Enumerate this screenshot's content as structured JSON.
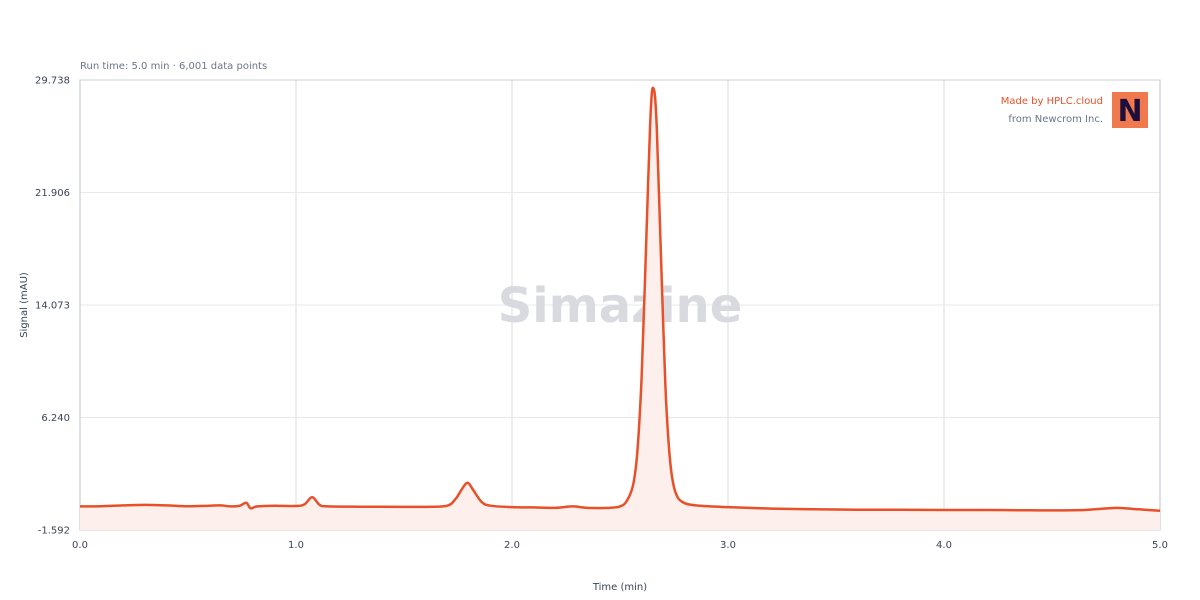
{
  "subtitle": "Run time: 5.0 min · 6,001 data points",
  "watermark": "Simazine",
  "branding": {
    "line1": "Made by HPLC.cloud",
    "line2": "from Newcrom Inc.",
    "logo_letter": "N",
    "accent_color": "#f07a4e",
    "text_color": "#e8502a"
  },
  "colors": {
    "trace": "#e8502a",
    "fill": "#fdf0ec",
    "grid": "#e6e8ec",
    "axis": "#c8ccd4"
  },
  "chart_data": {
    "type": "line",
    "title": "",
    "xlabel": "Time (min)",
    "ylabel": "Signal (mAU)",
    "xlim": [
      0.0,
      5.0
    ],
    "ylim": [
      -1.592,
      29.738
    ],
    "x_ticks": [
      "0.0",
      "1.0",
      "2.0",
      "3.0",
      "4.0",
      "5.0"
    ],
    "y_ticks": [
      "-1.592",
      "6.240",
      "14.073",
      "21.906",
      "29.738"
    ],
    "grid": true,
    "series": [
      {
        "points": [
          [
            0.0,
            0.05
          ],
          [
            0.1,
            0.06
          ],
          [
            0.2,
            0.12
          ],
          [
            0.3,
            0.16
          ],
          [
            0.4,
            0.12
          ],
          [
            0.5,
            0.06
          ],
          [
            0.6,
            0.1
          ],
          [
            0.65,
            0.12
          ],
          [
            0.7,
            0.05
          ],
          [
            0.74,
            0.1
          ],
          [
            0.77,
            0.3
          ],
          [
            0.79,
            -0.08
          ],
          [
            0.82,
            0.05
          ],
          [
            0.9,
            0.1
          ],
          [
            1.0,
            0.08
          ],
          [
            1.04,
            0.2
          ],
          [
            1.075,
            0.7
          ],
          [
            1.11,
            0.15
          ],
          [
            1.15,
            0.05
          ],
          [
            1.3,
            0.03
          ],
          [
            1.5,
            0.02
          ],
          [
            1.6,
            0.02
          ],
          [
            1.7,
            0.1
          ],
          [
            1.74,
            0.6
          ],
          [
            1.77,
            1.3
          ],
          [
            1.795,
            1.7
          ],
          [
            1.82,
            1.2
          ],
          [
            1.86,
            0.35
          ],
          [
            1.9,
            0.1
          ],
          [
            2.0,
            0.0
          ],
          [
            2.1,
            -0.02
          ],
          [
            2.2,
            -0.05
          ],
          [
            2.28,
            0.05
          ],
          [
            2.35,
            -0.05
          ],
          [
            2.45,
            -0.05
          ],
          [
            2.5,
            0.05
          ],
          [
            2.53,
            0.4
          ],
          [
            2.56,
            1.5
          ],
          [
            2.58,
            3.8
          ],
          [
            2.6,
            9.0
          ],
          [
            2.615,
            15.5
          ],
          [
            2.63,
            22.5
          ],
          [
            2.64,
            26.8
          ],
          [
            2.648,
            28.9
          ],
          [
            2.655,
            29.15
          ],
          [
            2.662,
            28.6
          ],
          [
            2.67,
            26.5
          ],
          [
            2.68,
            22.0
          ],
          [
            2.695,
            15.0
          ],
          [
            2.71,
            8.5
          ],
          [
            2.725,
            4.5
          ],
          [
            2.74,
            2.2
          ],
          [
            2.76,
            0.9
          ],
          [
            2.79,
            0.35
          ],
          [
            2.85,
            0.12
          ],
          [
            3.0,
            0.0
          ],
          [
            3.2,
            -0.1
          ],
          [
            3.4,
            -0.15
          ],
          [
            3.6,
            -0.18
          ],
          [
            3.8,
            -0.18
          ],
          [
            4.0,
            -0.2
          ],
          [
            4.2,
            -0.2
          ],
          [
            4.4,
            -0.22
          ],
          [
            4.6,
            -0.22
          ],
          [
            4.7,
            -0.15
          ],
          [
            4.8,
            -0.05
          ],
          [
            4.9,
            -0.15
          ],
          [
            5.0,
            -0.25
          ]
        ]
      }
    ]
  }
}
